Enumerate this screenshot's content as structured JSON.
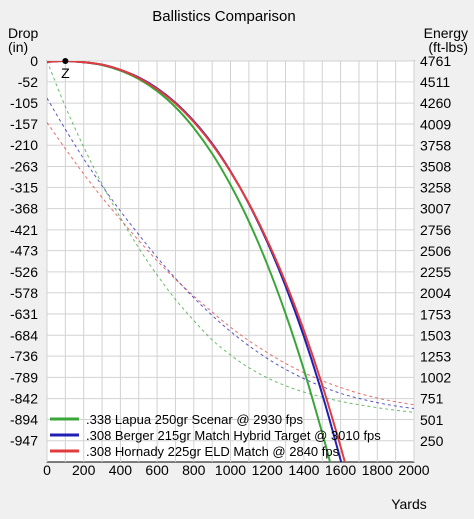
{
  "chart_data": {
    "type": "line",
    "title": "Ballistics Comparison",
    "left_axis": {
      "label_line1": "Drop",
      "label_line2": "(in)",
      "range": [
        -1000,
        0
      ],
      "ticks": [
        0,
        -52,
        -105,
        -157,
        -210,
        -263,
        -315,
        -368,
        -421,
        -473,
        -526,
        -578,
        -631,
        -684,
        -736,
        -789,
        -842,
        -894,
        -947
      ]
    },
    "right_axis": {
      "label_line1": "Energy",
      "label_line2": "(ft-lbs)",
      "range": [
        0,
        4761
      ],
      "ticks": [
        4761,
        4511,
        4260,
        4009,
        3758,
        3508,
        3258,
        3007,
        2756,
        2506,
        2255,
        2004,
        1753,
        1503,
        1253,
        1002,
        751,
        501,
        250
      ]
    },
    "x_axis": {
      "label": "Yards",
      "range": [
        0,
        2000
      ],
      "ticks": [
        0,
        200,
        400,
        600,
        800,
        1000,
        1200,
        1400,
        1600,
        1800,
        2000
      ]
    },
    "grid": true,
    "legend_position": "bottom-left",
    "zero_marker": {
      "label": "Z",
      "x": 100,
      "drop": 0
    },
    "series": [
      {
        "name": ".338 Lapua 250gr Scenar @ 2930 fps",
        "color": "#3aa63a",
        "drop": {
          "x": [
            0,
            100,
            200,
            300,
            400,
            500,
            600,
            700,
            800,
            900,
            1000,
            1100,
            1200,
            1300,
            1400,
            1500,
            1550,
            1600
          ],
          "y": [
            -2,
            0,
            -3,
            -10,
            -24,
            -45,
            -75,
            -115,
            -167,
            -231,
            -309,
            -400,
            -507,
            -630,
            -770,
            -928,
            -1013,
            -1103
          ]
        },
        "energy": {
          "x": [
            0,
            100,
            200,
            300,
            400,
            500,
            600,
            700,
            800,
            900,
            1000,
            1100,
            1200,
            1300,
            1400,
            1500,
            1600,
            1700,
            1800,
            1900,
            2000
          ],
          "y": [
            4761,
            4220,
            3740,
            3300,
            2900,
            2540,
            2220,
            1930,
            1680,
            1450,
            1270,
            1120,
            1000,
            905,
            830,
            770,
            720,
            680,
            645,
            615,
            590
          ]
        }
      },
      {
        "name": ".308 Berger 215gr Match Hybrid Target @ 3010 fps",
        "color": "#1f1fb4",
        "drop": {
          "x": [
            0,
            100,
            200,
            300,
            400,
            500,
            600,
            700,
            800,
            900,
            1000,
            1100,
            1200,
            1300,
            1400,
            1500,
            1600,
            1650
          ],
          "y": [
            -2,
            0,
            -3,
            -9,
            -22,
            -41,
            -68,
            -104,
            -150,
            -206,
            -275,
            -356,
            -451,
            -561,
            -687,
            -831,
            -995,
            -1085
          ]
        },
        "energy": {
          "x": [
            0,
            100,
            200,
            300,
            400,
            500,
            600,
            700,
            800,
            900,
            1000,
            1100,
            1200,
            1300,
            1400,
            1500,
            1600,
            1700,
            1800,
            1900,
            2000
          ],
          "y": [
            4320,
            3950,
            3600,
            3280,
            2980,
            2700,
            2430,
            2180,
            1950,
            1740,
            1550,
            1380,
            1230,
            1100,
            990,
            895,
            815,
            755,
            705,
            665,
            635
          ]
        }
      },
      {
        "name": ".308 Hornady 225gr ELD Match @ 2840 fps",
        "color": "#e03c3c",
        "drop": {
          "x": [
            0,
            100,
            200,
            300,
            400,
            500,
            600,
            700,
            800,
            900,
            1000,
            1100,
            1200,
            1300,
            1400,
            1500,
            1600,
            1670
          ],
          "y": [
            -2,
            0,
            -3,
            -9,
            -22,
            -42,
            -70,
            -106,
            -152,
            -208,
            -276,
            -355,
            -447,
            -552,
            -672,
            -808,
            -962,
            -1080
          ]
        },
        "energy": {
          "x": [
            0,
            100,
            200,
            300,
            400,
            500,
            600,
            700,
            800,
            900,
            1000,
            1100,
            1200,
            1300,
            1400,
            1500,
            1600,
            1700,
            1800,
            1900,
            2000
          ],
          "y": [
            4030,
            3720,
            3420,
            3140,
            2880,
            2630,
            2390,
            2170,
            1970,
            1780,
            1600,
            1440,
            1300,
            1170,
            1060,
            965,
            885,
            815,
            760,
            715,
            680
          ]
        }
      }
    ]
  }
}
